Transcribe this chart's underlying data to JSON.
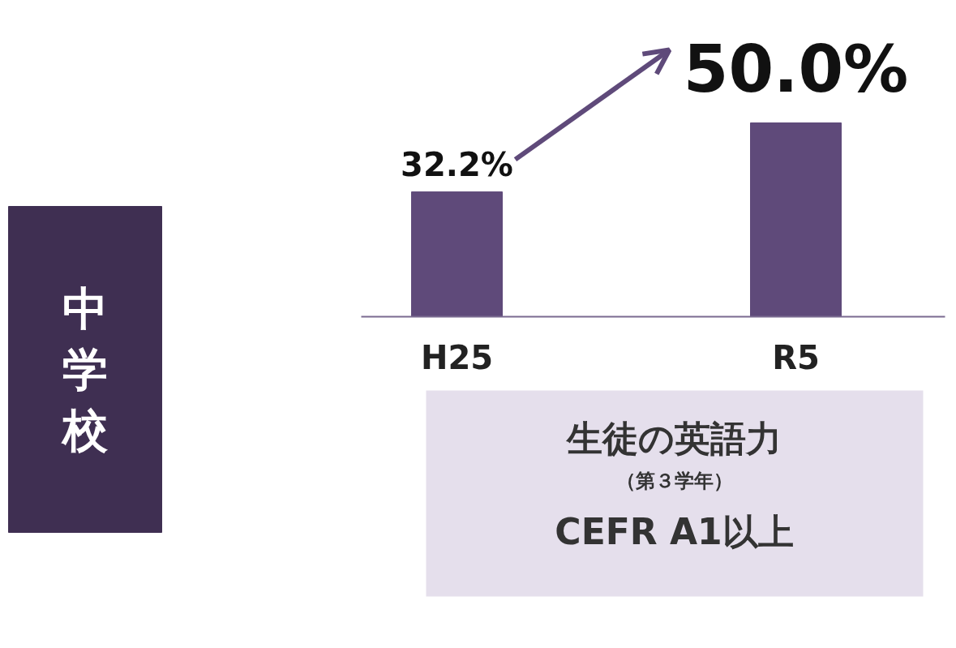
{
  "chart_data": {
    "type": "bar",
    "title": "中学校",
    "categories": [
      "H25",
      "R5"
    ],
    "values": [
      32.2,
      50.0
    ],
    "value_labels": [
      "32.2%",
      "50.0%"
    ],
    "color": "#5f4a7a",
    "annotations": [
      "生徒の英語力",
      "（第３学年）",
      "CEFR A1以上"
    ]
  }
}
